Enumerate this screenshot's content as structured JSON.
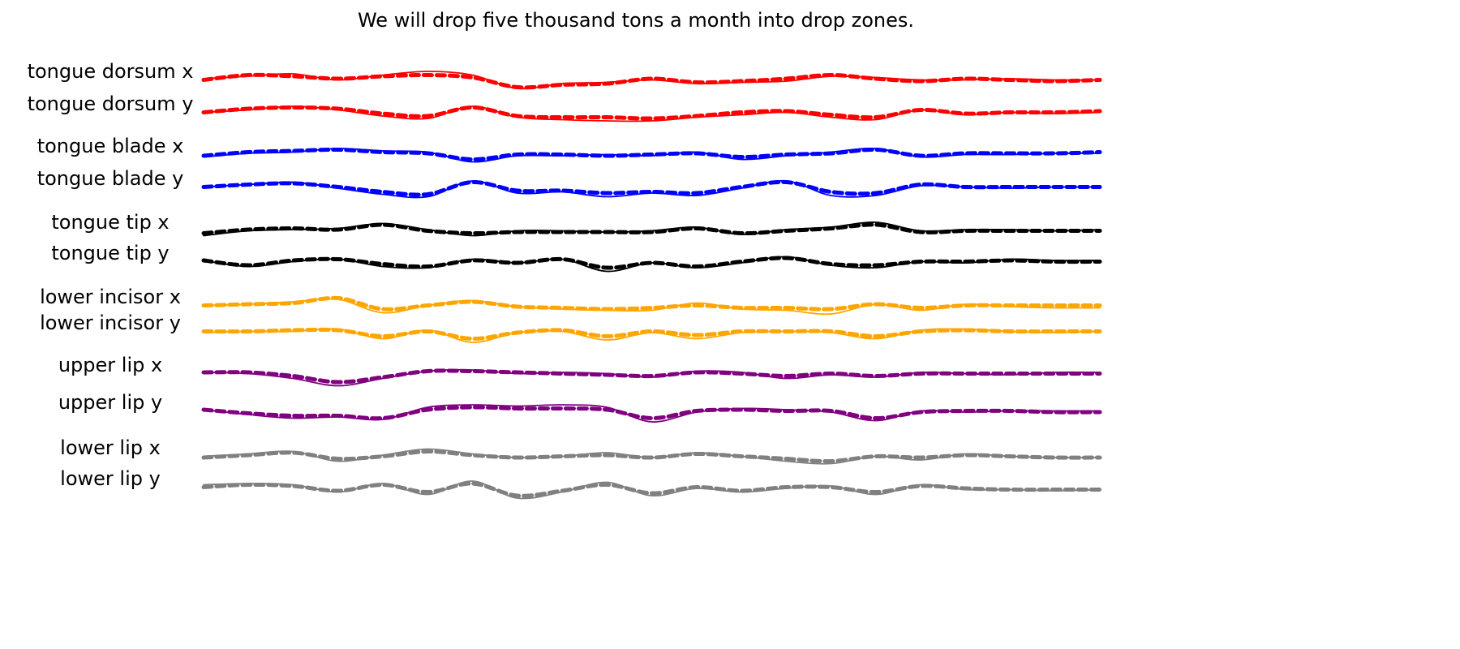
{
  "chart_data": {
    "type": "line",
    "title": "We will drop five thousand tons a month into drop zones.",
    "xlabel": "",
    "ylabel": "",
    "legend": "none",
    "grid": false,
    "x_range": [
      0,
      100
    ],
    "y_range": [
      -1,
      1
    ],
    "line_styles": {
      "pred": "solid-thin",
      "actual": "dashed-thick"
    },
    "x": [
      0,
      5,
      10,
      15,
      20,
      25,
      30,
      35,
      40,
      45,
      50,
      55,
      60,
      65,
      70,
      75,
      80,
      85,
      90,
      95,
      100
    ],
    "tracks": [
      {
        "name": "tongue dorsum x",
        "color": "#ff0000",
        "pred": [
          0.2,
          0.4,
          0.6,
          0.1,
          0.5,
          0.8,
          0.5,
          -0.6,
          -0.2,
          -0.1,
          0.1,
          -0.2,
          -0.1,
          0.0,
          0.4,
          0.3,
          0.1,
          0.1,
          0.2,
          0.1,
          0.1
        ],
        "actual": [
          0.1,
          0.5,
          0.4,
          0.2,
          0.4,
          0.5,
          0.3,
          -0.5,
          -0.3,
          -0.2,
          0.2,
          -0.1,
          0.0,
          0.2,
          0.5,
          0.2,
          0.0,
          0.2,
          0.1,
          0.0,
          0.1
        ]
      },
      {
        "name": "tongue dorsum y",
        "color": "#ff0000",
        "pred": [
          0.1,
          0.3,
          0.6,
          0.3,
          -0.2,
          -0.4,
          0.6,
          -0.3,
          -0.5,
          -0.6,
          -0.6,
          -0.3,
          -0.1,
          0.1,
          -0.3,
          -0.5,
          0.3,
          -0.1,
          0.1,
          0.0,
          0.1
        ],
        "actual": [
          0.1,
          0.4,
          0.5,
          0.4,
          0.0,
          -0.2,
          0.5,
          -0.2,
          -0.3,
          -0.3,
          -0.4,
          -0.2,
          0.1,
          0.2,
          -0.1,
          -0.3,
          0.3,
          0.0,
          0.1,
          0.1,
          0.2
        ]
      },
      {
        "name": "tongue blade x",
        "color": "#0000ff",
        "pred": [
          -0.1,
          0.2,
          0.3,
          0.6,
          0.4,
          0.3,
          -0.5,
          0.0,
          0.0,
          0.1,
          0.0,
          0.3,
          -0.3,
          0.0,
          0.3,
          0.6,
          -0.1,
          0.1,
          0.1,
          0.2,
          0.2
        ],
        "actual": [
          0.0,
          0.3,
          0.4,
          0.5,
          0.3,
          0.2,
          -0.3,
          0.1,
          0.1,
          0.0,
          0.1,
          0.2,
          -0.1,
          0.1,
          0.2,
          0.5,
          0.0,
          0.2,
          0.2,
          0.2,
          0.3
        ]
      },
      {
        "name": "tongue blade y",
        "color": "#0000ff",
        "pred": [
          0.1,
          0.3,
          0.5,
          0.0,
          -0.5,
          -0.7,
          0.6,
          -0.4,
          -0.3,
          -0.7,
          -0.4,
          -0.6,
          0.0,
          0.6,
          -0.6,
          -0.6,
          0.2,
          0.1,
          0.0,
          0.1,
          0.1
        ],
        "actual": [
          0.1,
          0.3,
          0.4,
          0.1,
          -0.3,
          -0.5,
          0.5,
          -0.2,
          -0.2,
          -0.4,
          -0.3,
          -0.4,
          0.1,
          0.5,
          -0.3,
          -0.4,
          0.3,
          0.1,
          0.1,
          0.1,
          0.1
        ]
      },
      {
        "name": "tongue tip x",
        "color": "#000000",
        "pred": [
          -0.3,
          0.1,
          0.2,
          0.3,
          0.7,
          0.2,
          -0.3,
          0.1,
          0.1,
          0.0,
          0.1,
          0.4,
          -0.2,
          0.2,
          0.4,
          0.8,
          0.1,
          0.2,
          0.2,
          0.1,
          0.2
        ],
        "actual": [
          -0.1,
          0.2,
          0.3,
          0.2,
          0.6,
          0.1,
          -0.1,
          0.0,
          0.0,
          0.0,
          0.0,
          0.3,
          -0.1,
          0.1,
          0.3,
          0.6,
          0.0,
          0.1,
          0.1,
          0.1,
          0.1
        ]
      },
      {
        "name": "tongue tip y",
        "color": "#000000",
        "pred": [
          0.2,
          -0.3,
          0.1,
          0.3,
          -0.3,
          -0.4,
          0.3,
          0.0,
          0.3,
          -0.7,
          0.0,
          -0.4,
          0.0,
          0.5,
          -0.2,
          -0.4,
          0.1,
          0.0,
          0.3,
          0.2,
          0.2
        ],
        "actual": [
          0.2,
          -0.2,
          0.2,
          0.3,
          -0.1,
          -0.3,
          0.2,
          0.0,
          0.3,
          -0.4,
          0.0,
          -0.3,
          0.1,
          0.4,
          -0.1,
          -0.2,
          0.1,
          0.1,
          0.2,
          0.1,
          0.1
        ]
      },
      {
        "name": "lower incisor x",
        "color": "#ffa500",
        "pred": [
          0.1,
          0.2,
          0.4,
          0.6,
          -0.5,
          0.1,
          0.5,
          0.0,
          -0.2,
          -0.3,
          -0.3,
          0.3,
          -0.2,
          -0.3,
          -0.6,
          0.2,
          -0.3,
          0.2,
          0.0,
          -0.1,
          -0.1
        ],
        "actual": [
          0.1,
          0.2,
          0.3,
          0.7,
          -0.2,
          0.1,
          0.4,
          0.0,
          -0.1,
          -0.2,
          -0.1,
          0.1,
          -0.1,
          -0.1,
          -0.2,
          0.2,
          -0.1,
          0.1,
          0.1,
          0.1,
          0.1
        ]
      },
      {
        "name": "lower incisor y",
        "color": "#ffa500",
        "pred": [
          0.0,
          0.1,
          0.1,
          0.3,
          -0.5,
          0.2,
          -0.8,
          0.0,
          0.1,
          -0.6,
          0.0,
          -0.5,
          0.0,
          0.1,
          0.0,
          -0.5,
          0.2,
          0.3,
          0.1,
          0.0,
          0.1
        ],
        "actual": [
          0.1,
          0.1,
          0.2,
          0.2,
          -0.3,
          0.1,
          -0.5,
          0.0,
          0.2,
          -0.3,
          0.1,
          -0.2,
          0.1,
          0.1,
          0.1,
          -0.3,
          0.1,
          0.2,
          0.1,
          0.1,
          0.1
        ]
      },
      {
        "name": "upper lip x",
        "color": "#800080",
        "pred": [
          0.2,
          0.1,
          -0.3,
          -0.9,
          -0.3,
          0.3,
          0.4,
          0.1,
          0.2,
          0.1,
          -0.2,
          0.3,
          0.2,
          -0.3,
          0.0,
          -0.2,
          0.2,
          0.1,
          0.0,
          0.2,
          0.2
        ],
        "actual": [
          0.2,
          0.2,
          -0.1,
          -0.6,
          -0.2,
          0.3,
          0.3,
          0.2,
          0.1,
          0.0,
          -0.1,
          0.2,
          0.1,
          -0.1,
          0.1,
          -0.1,
          0.1,
          0.1,
          0.1,
          0.1,
          0.1
        ]
      },
      {
        "name": "upper lip y",
        "color": "#800080",
        "pred": [
          0.2,
          -0.2,
          -0.5,
          -0.4,
          -0.6,
          0.4,
          0.6,
          0.5,
          0.6,
          0.4,
          -0.8,
          0.0,
          0.3,
          0.2,
          0.0,
          -0.7,
          0.1,
          0.0,
          0.1,
          0.1,
          0.1
        ],
        "actual": [
          0.2,
          -0.1,
          -0.3,
          -0.3,
          -0.5,
          0.2,
          0.4,
          0.3,
          0.3,
          0.2,
          -0.5,
          0.1,
          0.2,
          0.1,
          0.1,
          -0.5,
          0.0,
          0.1,
          0.1,
          0.0,
          0.0
        ]
      },
      {
        "name": "lower lip x",
        "color": "#808080",
        "pred": [
          0.1,
          0.3,
          0.5,
          -0.3,
          0.2,
          0.7,
          0.3,
          0.0,
          0.1,
          0.4,
          0.0,
          0.4,
          0.1,
          -0.3,
          -0.5,
          0.1,
          -0.2,
          0.3,
          0.1,
          0.0,
          0.0
        ],
        "actual": [
          0.0,
          0.2,
          0.4,
          -0.1,
          0.1,
          0.5,
          0.2,
          0.0,
          0.1,
          0.2,
          0.0,
          0.3,
          0.1,
          -0.1,
          -0.3,
          0.1,
          0.0,
          0.2,
          0.1,
          0.0,
          0.0
        ]
      },
      {
        "name": "lower lip y",
        "color": "#808080",
        "pred": [
          0.3,
          0.4,
          0.3,
          -0.3,
          0.4,
          -0.5,
          0.6,
          -0.8,
          -0.3,
          0.5,
          -0.6,
          0.0,
          -0.3,
          0.0,
          0.2,
          -0.5,
          0.3,
          -0.1,
          -0.1,
          -0.2,
          -0.1
        ],
        "actual": [
          0.1,
          0.3,
          0.2,
          -0.2,
          0.3,
          -0.3,
          0.4,
          -0.6,
          -0.2,
          0.3,
          -0.4,
          0.1,
          -0.2,
          0.1,
          0.1,
          -0.3,
          0.2,
          0.0,
          -0.1,
          -0.1,
          -0.1
        ]
      }
    ]
  }
}
